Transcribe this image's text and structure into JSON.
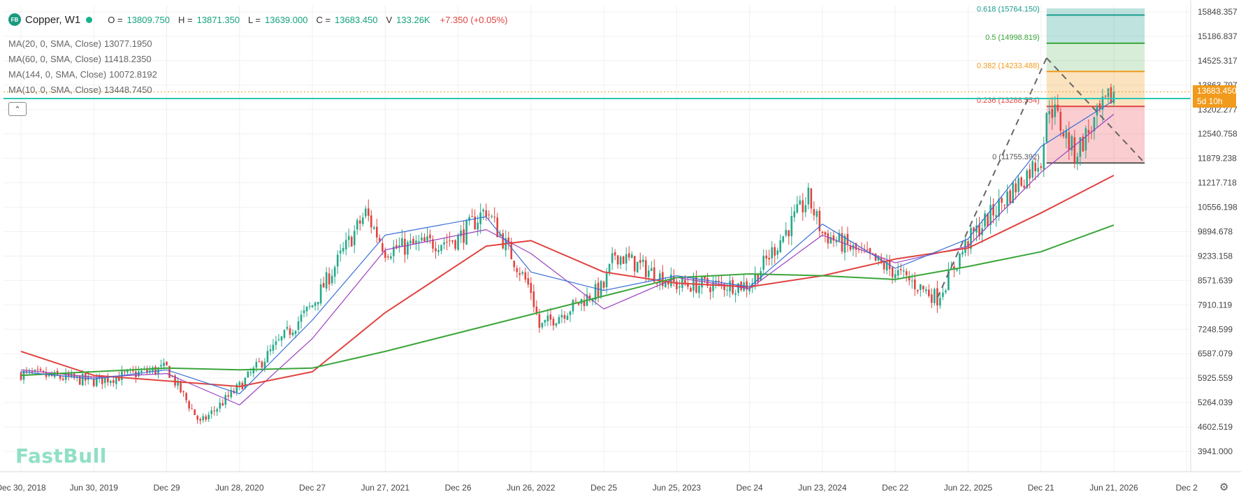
{
  "symbol": {
    "logo_text": "FB",
    "name": "Copper, W1",
    "open_label": "O =",
    "open": "13809.750",
    "high_label": "H =",
    "high": "13871.350",
    "low_label": "L =",
    "low": "13639.000",
    "close_label": "C =",
    "close": "13683.450",
    "volume_label": "V",
    "volume": "133.26K",
    "change": "+7.350 (+0.05%)"
  },
  "moving_averages": [
    {
      "label": "MA(20, 0, SMA, Close)",
      "value": "13077.1950",
      "color": "#9c3fc0"
    },
    {
      "label": "MA(60, 0, SMA, Close)",
      "value": "11418.2350",
      "color": "#e0433f"
    },
    {
      "label": "MA(144, 0, SMA, Close)",
      "value": "10072.8192",
      "color": "#3aa53a"
    },
    {
      "label": "MA(10, 0, SMA, Close)",
      "value": "13448.7450",
      "color": "#3a6fd8"
    }
  ],
  "collapse_icon": "chevron-up-icon",
  "watermark": "FastBull",
  "price_badge": {
    "price": "13683.450",
    "countdown": "5d 10h",
    "color": "#f19a1c"
  },
  "settings_icon": "gear-icon",
  "colors": {
    "up": "#26a98a",
    "down": "#e0433f",
    "horizontal_line": "#2bc6b4"
  },
  "chart_data": {
    "type": "candlestick",
    "ylim": [
      3600,
      16000
    ],
    "y_ticks": [
      "15848.357",
      "15186.837",
      "14525.317",
      "13863.797",
      "13202.277",
      "12540.758",
      "11879.238",
      "11217.718",
      "10556.198",
      "9894.678",
      "9233.158",
      "8571.639",
      "7910.119",
      "7248.599",
      "6587.079",
      "5925.559",
      "5264.039",
      "4602.519",
      "3941.000"
    ],
    "x_ticks": [
      "Dec 30, 2018",
      "Jun 30, 2019",
      "Dec 29",
      "Jun 28, 2020",
      "Dec 27",
      "Jun 27, 2021",
      "Dec 26",
      "Jun 26, 2022",
      "Dec 25",
      "Jun 25, 2023",
      "Dec 24",
      "Jun 23, 2024",
      "Dec 22",
      "Jun 22, 2025",
      "Dec 21",
      "Jun 21, 2026",
      "Dec 2"
    ],
    "close_path": [
      [
        "2018-12-30",
        6050
      ],
      [
        "2019-06-30",
        5850
      ],
      [
        "2019-12-29",
        6200
      ],
      [
        "2020-03-22",
        4700
      ],
      [
        "2020-06-28",
        5700
      ],
      [
        "2020-12-27",
        7900
      ],
      [
        "2021-05-09",
        10400
      ],
      [
        "2021-06-27",
        9400
      ],
      [
        "2021-12-26",
        9700
      ],
      [
        "2022-03-06",
        10500
      ],
      [
        "2022-06-26",
        8300
      ],
      [
        "2022-07-17",
        7300
      ],
      [
        "2022-12-25",
        8400
      ],
      [
        "2023-01-22",
        9300
      ],
      [
        "2023-06-25",
        8450
      ],
      [
        "2023-12-24",
        8450
      ],
      [
        "2024-05-19",
        10800
      ],
      [
        "2024-06-23",
        9850
      ],
      [
        "2024-12-22",
        8800
      ],
      [
        "2025-04-06",
        8100
      ],
      [
        "2025-06-22",
        9650
      ],
      [
        "2025-12-21",
        11900
      ],
      [
        "2026-01-11",
        13400
      ],
      [
        "2026-03-15",
        12000
      ],
      [
        "2026-06-21",
        13683
      ]
    ],
    "ma_paths": {
      "MA(60, 0, SMA, Close)": [
        [
          "2018-12-30",
          6650
        ],
        [
          "2019-06-30",
          6000
        ],
        [
          "2020-06-28",
          5700
        ],
        [
          "2020-12-27",
          6100
        ],
        [
          "2021-06-27",
          7700
        ],
        [
          "2022-03-06",
          9500
        ],
        [
          "2022-06-26",
          9650
        ],
        [
          "2022-12-25",
          8800
        ],
        [
          "2023-06-25",
          8500
        ],
        [
          "2023-12-24",
          8400
        ],
        [
          "2024-06-23",
          8700
        ],
        [
          "2024-12-22",
          9150
        ],
        [
          "2025-06-22",
          9450
        ],
        [
          "2025-12-21",
          10400
        ],
        [
          "2026-06-21",
          11418
        ]
      ],
      "MA(144, 0, SMA, Close)": [
        [
          "2018-12-30",
          6000
        ],
        [
          "2019-12-29",
          6200
        ],
        [
          "2020-06-28",
          6150
        ],
        [
          "2020-12-27",
          6200
        ],
        [
          "2021-06-27",
          6650
        ],
        [
          "2022-06-26",
          7650
        ],
        [
          "2023-06-25",
          8650
        ],
        [
          "2023-12-24",
          8750
        ],
        [
          "2024-06-23",
          8700
        ],
        [
          "2024-12-22",
          8600
        ],
        [
          "2025-06-22",
          8950
        ],
        [
          "2025-12-21",
          9350
        ],
        [
          "2026-06-21",
          10073
        ]
      ],
      "MA(20, 0, SMA, Close)": [
        [
          "2018-12-30",
          6150
        ],
        [
          "2019-06-30",
          5950
        ],
        [
          "2019-12-29",
          6050
        ],
        [
          "2020-06-28",
          5200
        ],
        [
          "2020-12-27",
          7000
        ],
        [
          "2021-06-27",
          9400
        ],
        [
          "2022-03-06",
          9950
        ],
        [
          "2022-06-26",
          9300
        ],
        [
          "2022-12-25",
          7800
        ],
        [
          "2023-06-25",
          8650
        ],
        [
          "2023-12-24",
          8350
        ],
        [
          "2024-06-23",
          9800
        ],
        [
          "2024-12-22",
          9050
        ],
        [
          "2025-06-22",
          9500
        ],
        [
          "2025-12-21",
          11500
        ],
        [
          "2026-06-21",
          13077
        ]
      ],
      "MA(10, 0, SMA, Close)": [
        [
          "2018-12-30",
          6100
        ],
        [
          "2019-06-30",
          5900
        ],
        [
          "2019-12-29",
          6150
        ],
        [
          "2020-06-28",
          5500
        ],
        [
          "2020-12-27",
          7500
        ],
        [
          "2021-06-27",
          9800
        ],
        [
          "2022-03-06",
          10300
        ],
        [
          "2022-06-26",
          8800
        ],
        [
          "2022-12-25",
          8300
        ],
        [
          "2023-06-25",
          8700
        ],
        [
          "2023-12-24",
          8400
        ],
        [
          "2024-06-23",
          10100
        ],
        [
          "2024-12-22",
          8900
        ],
        [
          "2025-06-22",
          9700
        ],
        [
          "2025-12-21",
          12200
        ],
        [
          "2026-06-21",
          13449
        ]
      ]
    },
    "current_price_line": 13683.45,
    "horizontal_line": 13500,
    "trend_lines": [
      [
        [
          "2025-04-06",
          8100
        ],
        [
          "2026-01-04",
          14600
        ]
      ],
      [
        [
          "2026-01-04",
          14600
        ],
        [
          "2026-09-06",
          11755
        ]
      ]
    ],
    "fibonacci": {
      "start_date": "2026-01-04",
      "end_date": "2026-09-06",
      "levels": [
        {
          "label": "0.618 (15764.150)",
          "value": 15764.15,
          "color": "#1a9b8c",
          "fill": "rgba(26,155,140,0.28)"
        },
        {
          "label": "0.5 (14998.819)",
          "value": 14998.819,
          "color": "#3aa53a",
          "fill": "rgba(58,165,58,0.20)"
        },
        {
          "label": "0.382 (14233.488)",
          "value": 14233.488,
          "color": "#f19a1c",
          "fill": "rgba(241,154,28,0.28)"
        },
        {
          "label": "0.236 (13288.554)",
          "value": 13288.554,
          "color": "#e0433f",
          "fill": "rgba(240,90,100,0.30)"
        },
        {
          "label": "0 (11755.392)",
          "value": 11755.392,
          "color": "#555555"
        }
      ]
    }
  }
}
